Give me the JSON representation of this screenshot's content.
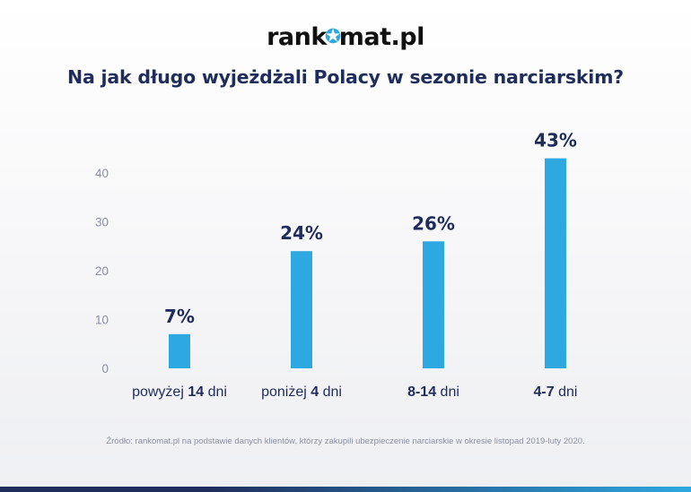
{
  "logo": {
    "left": "rank",
    "right": "mat.pl"
  },
  "chart_data": {
    "type": "bar",
    "title": "Na jak długo wyjeżdżali Polacy w sezonie narciarskim?",
    "categories": [
      {
        "parts": [
          {
            "text": "powyżej ",
            "bold": false
          },
          {
            "text": "14",
            "bold": true
          },
          {
            "text": " dni",
            "bold": false
          }
        ]
      },
      {
        "parts": [
          {
            "text": "poniżej ",
            "bold": false
          },
          {
            "text": "4",
            "bold": true
          },
          {
            "text": " dni",
            "bold": false
          }
        ]
      },
      {
        "parts": [
          {
            "text": "8-14",
            "bold": true
          },
          {
            "text": " dni",
            "bold": false
          }
        ]
      },
      {
        "parts": [
          {
            "text": "4-7",
            "bold": true
          },
          {
            "text": " dni",
            "bold": false
          }
        ]
      }
    ],
    "values": [
      7,
      24,
      26,
      43
    ],
    "data_labels": [
      "7%",
      "24%",
      "26%",
      "43%"
    ],
    "yticks": [
      0,
      10,
      20,
      30,
      40
    ],
    "ylim": [
      0,
      43
    ],
    "grid": false,
    "bar_color": "#2ea8e0",
    "label_color": "#1f2d5c"
  },
  "source": "Źródło: rankomat.pl na podstawie danych klientów, którzy zakupili ubezpieczenie narciarskie w okresie listopad 2019-luty 2020."
}
